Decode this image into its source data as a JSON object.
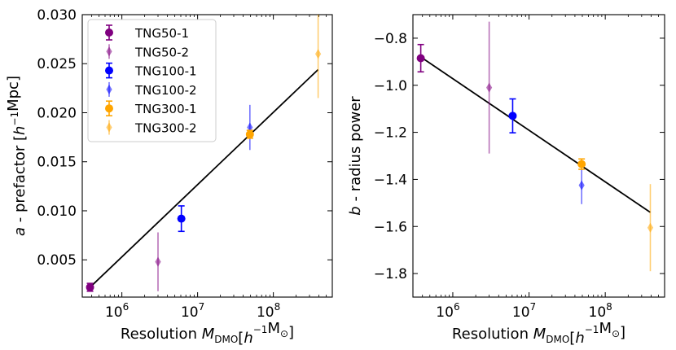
{
  "chart_data": [
    {
      "type": "scatter",
      "xscale": "log",
      "xlim": [
        300000,
        600000000
      ],
      "ylim": [
        0.0012,
        0.03
      ],
      "xlabel": "Resolution M_DMO[h⁻¹M_⊙]",
      "ylabel": "a - prefactor [h⁻¹Mpc]",
      "xticks": [
        {
          "value": 1000000,
          "base": "10",
          "exp": "6"
        },
        {
          "value": 10000000,
          "base": "10",
          "exp": "7"
        },
        {
          "value": 100000000,
          "base": "10",
          "exp": "8"
        }
      ],
      "yticks": [
        {
          "value": 0.005,
          "label": "0.005"
        },
        {
          "value": 0.01,
          "label": "0.010"
        },
        {
          "value": 0.015,
          "label": "0.015"
        },
        {
          "value": 0.02,
          "label": "0.020"
        },
        {
          "value": 0.025,
          "label": "0.025"
        },
        {
          "value": 0.03,
          "label": "0.030"
        }
      ],
      "legend": "upper-left",
      "series": [
        {
          "name": "TNG50-1",
          "marker": "circle",
          "color": "#800080",
          "alpha": 1.0,
          "points": [
            {
              "x": 380000,
              "y": 0.0022,
              "err": 0.0004
            }
          ]
        },
        {
          "name": "TNG50-2",
          "marker": "diamond",
          "color": "#800080",
          "alpha": 0.55,
          "points": [
            {
              "x": 3000000,
              "y": 0.0048,
              "err": 0.003
            }
          ]
        },
        {
          "name": "TNG100-1",
          "marker": "circle",
          "color": "#0000ff",
          "alpha": 1.0,
          "points": [
            {
              "x": 6100000,
              "y": 0.0092,
              "err": 0.0013
            }
          ]
        },
        {
          "name": "TNG100-2",
          "marker": "diamond",
          "color": "#0000ff",
          "alpha": 0.55,
          "points": [
            {
              "x": 49000000,
              "y": 0.0185,
              "err": 0.0023
            }
          ]
        },
        {
          "name": "TNG300-1",
          "marker": "circle",
          "color": "#ffa500",
          "alpha": 1.0,
          "points": [
            {
              "x": 49000000,
              "y": 0.0178,
              "err": 0.0004
            }
          ]
        },
        {
          "name": "TNG300-2",
          "marker": "diamond",
          "color": "#ffa500",
          "alpha": 0.55,
          "points": [
            {
              "x": 390000000,
              "y": 0.026,
              "err": 0.0045
            }
          ]
        }
      ],
      "fit": {
        "x": [
          380000,
          390000000
        ],
        "y": [
          0.0022,
          0.0244
        ],
        "color": "#000000"
      }
    },
    {
      "type": "scatter",
      "xscale": "log",
      "xlim": [
        300000,
        600000000
      ],
      "ylim": [
        -1.9,
        -0.7
      ],
      "xlabel": "Resolution M_DMO[h⁻¹M_⊙]",
      "ylabel": "b - radius power",
      "xticks": [
        {
          "value": 1000000,
          "base": "10",
          "exp": "6"
        },
        {
          "value": 10000000,
          "base": "10",
          "exp": "7"
        },
        {
          "value": 100000000,
          "base": "10",
          "exp": "8"
        }
      ],
      "yticks": [
        {
          "value": -1.8,
          "label": "−1.8"
        },
        {
          "value": -1.6,
          "label": "−1.6"
        },
        {
          "value": -1.4,
          "label": "−1.4"
        },
        {
          "value": -1.2,
          "label": "−1.2"
        },
        {
          "value": -1.0,
          "label": "−1.0"
        },
        {
          "value": -0.8,
          "label": "−0.8"
        }
      ],
      "series": [
        {
          "name": "TNG50-1",
          "marker": "circle",
          "color": "#800080",
          "alpha": 1.0,
          "points": [
            {
              "x": 380000,
              "y": -0.885,
              "err": 0.058
            }
          ]
        },
        {
          "name": "TNG50-2",
          "marker": "diamond",
          "color": "#800080",
          "alpha": 0.55,
          "points": [
            {
              "x": 3000000,
              "y": -1.01,
              "err": 0.28
            }
          ]
        },
        {
          "name": "TNG100-1",
          "marker": "circle",
          "color": "#0000ff",
          "alpha": 1.0,
          "points": [
            {
              "x": 6100000,
              "y": -1.13,
              "err": 0.072
            }
          ]
        },
        {
          "name": "TNG100-2",
          "marker": "diamond",
          "color": "#0000ff",
          "alpha": 0.55,
          "points": [
            {
              "x": 49000000,
              "y": -1.425,
              "err": 0.08
            }
          ]
        },
        {
          "name": "TNG300-1",
          "marker": "circle",
          "color": "#ffa500",
          "alpha": 1.0,
          "points": [
            {
              "x": 49000000,
              "y": -1.335,
              "err": 0.022
            }
          ]
        },
        {
          "name": "TNG300-2",
          "marker": "diamond",
          "color": "#ffa500",
          "alpha": 0.55,
          "points": [
            {
              "x": 390000000,
              "y": -1.605,
              "err": 0.185
            }
          ]
        }
      ],
      "fit": {
        "x": [
          380000,
          390000000
        ],
        "y": [
          -0.88,
          -1.54
        ],
        "color": "#000000"
      }
    }
  ]
}
